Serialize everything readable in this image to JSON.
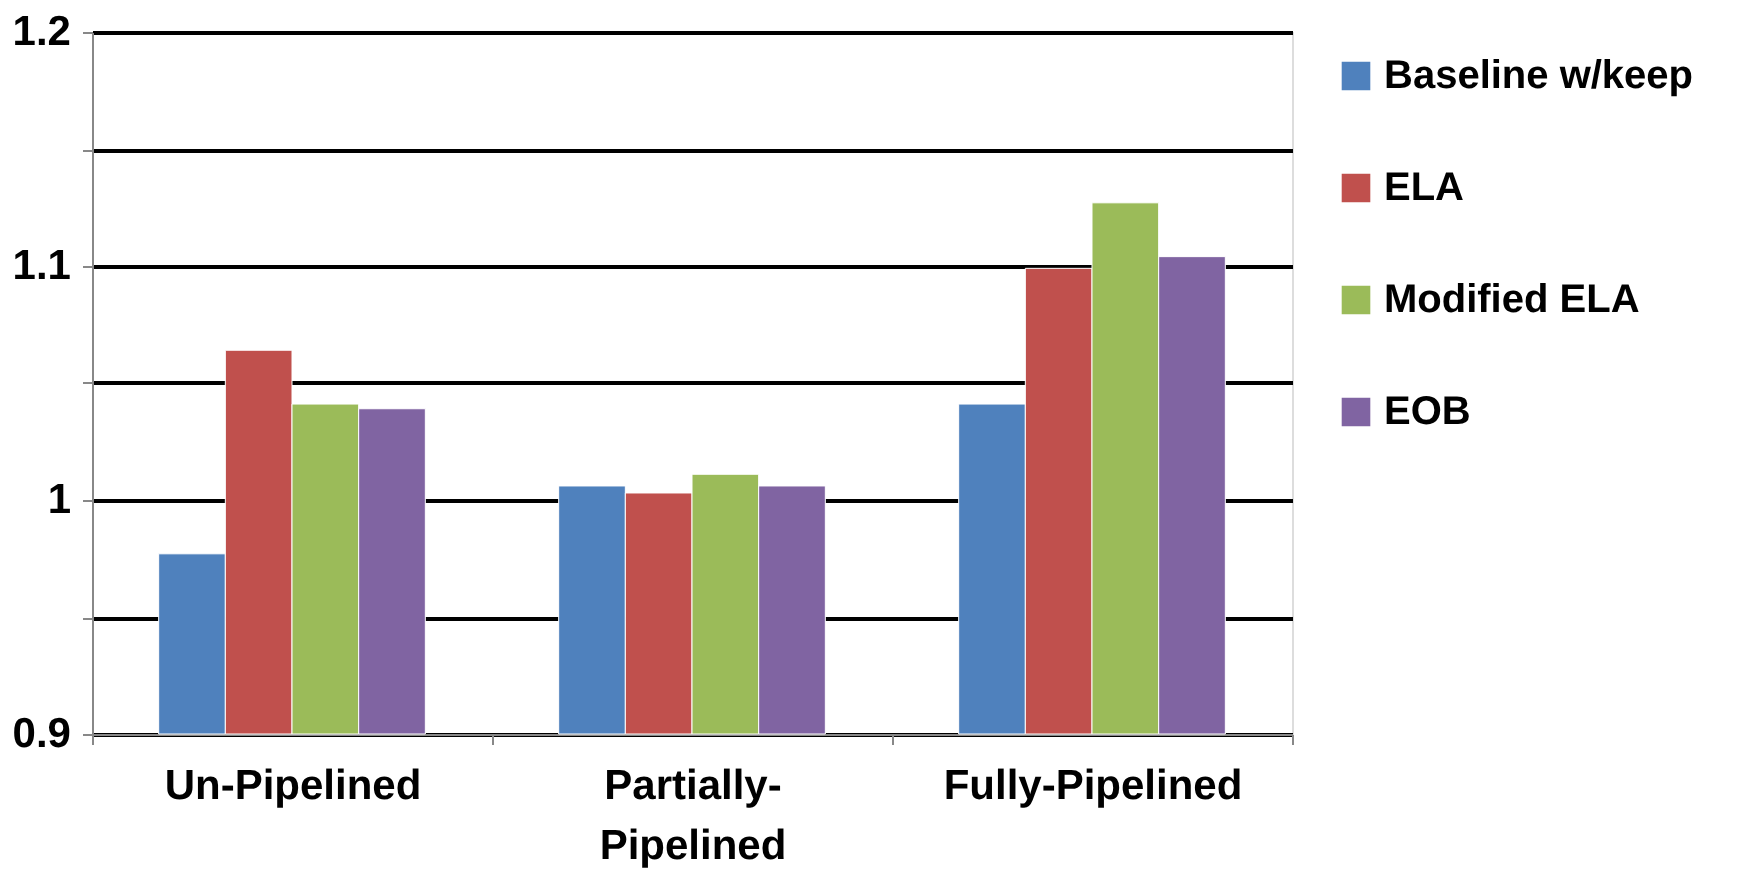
{
  "chart_data": {
    "type": "bar",
    "categories": [
      "Un-Pipelined",
      "Partially-\nPipelined",
      "Fully-Pipelined"
    ],
    "series": [
      {
        "name": "Baseline w/keep",
        "color": "#4f81bd",
        "values": [
          0.977,
          1.006,
          1.041
        ]
      },
      {
        "name": "ELA",
        "color": "#c0504d",
        "values": [
          1.064,
          1.003,
          1.099
        ]
      },
      {
        "name": "Modified ELA",
        "color": "#9bbb59",
        "values": [
          1.041,
          1.011,
          1.127
        ]
      },
      {
        "name": "EOB",
        "color": "#8064a2",
        "values": [
          1.039,
          1.006,
          1.104
        ]
      }
    ],
    "ylim": [
      0.9,
      1.2
    ],
    "yticks": [
      0.9,
      {
        "value": 0.95,
        "label": null
      },
      1,
      {
        "value": 1.05,
        "label": null
      },
      1.1,
      {
        "value": 1.15,
        "label": null
      },
      1.2
    ],
    "grid": "y",
    "legend": "right"
  }
}
